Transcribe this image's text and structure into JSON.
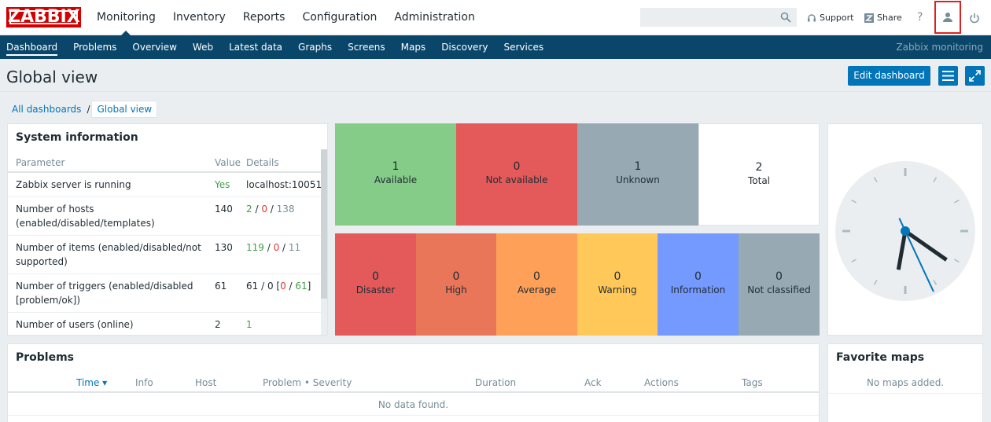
{
  "brand": {
    "logo": "ZABBIX",
    "footer_brand": "Zabbix monitoring"
  },
  "topnav": [
    "Monitoring",
    "Inventory",
    "Reports",
    "Configuration",
    "Administration"
  ],
  "topnav_active": "Monitoring",
  "search": {
    "value": "",
    "placeholder": ""
  },
  "toplinks": {
    "support": "Support",
    "share": "Share",
    "help": "?"
  },
  "subnav": [
    "Dashboard",
    "Problems",
    "Overview",
    "Web",
    "Latest data",
    "Graphs",
    "Screens",
    "Maps",
    "Discovery",
    "Services"
  ],
  "subnav_active": "Dashboard",
  "page": {
    "title": "Global view",
    "edit_button": "Edit dashboard"
  },
  "breadcrumb": {
    "parent": "All dashboards",
    "separator": "/",
    "current": "Global view"
  },
  "system_info": {
    "title": "System information",
    "headers": {
      "parameter": "Parameter",
      "value": "Value",
      "details": "Details"
    },
    "rows": [
      {
        "parameter": "Zabbix server is running",
        "value": "Yes",
        "details": "localhost:10051"
      },
      {
        "parameter": "Number of hosts (enabled/disabled/templates)",
        "value": "140",
        "d1": "2",
        "d2": "0",
        "d3": "138"
      },
      {
        "parameter": "Number of items (enabled/disabled/not supported)",
        "value": "130",
        "d1": "119",
        "d2": "0",
        "d3": "11"
      },
      {
        "parameter": "Number of triggers (enabled/disabled [problem/ok])",
        "value": "61",
        "d_pre": "61 / 0 [",
        "d1": "0",
        "d2": "61",
        "d_post": "]"
      },
      {
        "parameter": "Number of users (online)",
        "value": "2",
        "details": "1"
      }
    ]
  },
  "host_availability": [
    {
      "count": "1",
      "label": "Available",
      "color": "#86cc89"
    },
    {
      "count": "0",
      "label": "Not available",
      "color": "#e45959"
    },
    {
      "count": "1",
      "label": "Unknown",
      "color": "#97aab3"
    },
    {
      "count": "2",
      "label": "Total",
      "color": "#ffffff"
    }
  ],
  "problems_by_severity": [
    {
      "count": "0",
      "label": "Disaster",
      "color": "#e45959"
    },
    {
      "count": "0",
      "label": "High",
      "color": "#e97659"
    },
    {
      "count": "0",
      "label": "Average",
      "color": "#ffa059"
    },
    {
      "count": "0",
      "label": "Warning",
      "color": "#ffc859"
    },
    {
      "count": "0",
      "label": "Information",
      "color": "#7499ff"
    },
    {
      "count": "0",
      "label": "Not classified",
      "color": "#97aab3"
    }
  ],
  "clock": {
    "hour_hand_deg": 125,
    "minute_hand_deg": 190,
    "second_hand_deg": 155
  },
  "problems": {
    "title": "Problems",
    "headers": [
      "Time ▾",
      "Info",
      "Host",
      "Problem • Severity",
      "Duration",
      "Ack",
      "Actions",
      "Tags"
    ],
    "empty": "No data found."
  },
  "favorite_maps": {
    "title": "Favorite maps",
    "empty": "No maps added."
  }
}
